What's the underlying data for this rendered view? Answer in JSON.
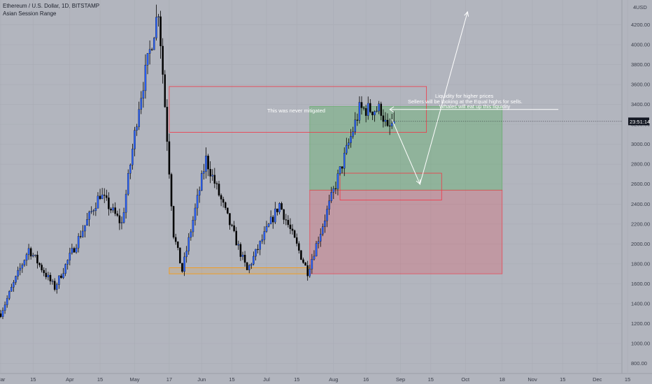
{
  "header": {
    "symbol": "Ethereum / U.S. Dollar, 1D, BITSTAMP",
    "indicator": "Asian Session Range"
  },
  "price_badge": "23:51:14",
  "currency_label": "USD",
  "colors": {
    "background": "#b2b5be",
    "bull_candle": "#2962ff",
    "bear_candle": "#000000",
    "supply_box": "#f23645",
    "demand_box": "#ff9800",
    "target_zone": "#4caf50",
    "stop_zone": "#f23645",
    "annotation": "#ffffff"
  },
  "annotations": {
    "never_mitigated": "This was never mitigated",
    "liquidity_higher": "Liquidity for higher prices",
    "sellers_equal_highs": "Sellers will be looking at the Equal highs for sells.",
    "whales_liquidity": "Whales will eat up this liquidity"
  },
  "chart_data": {
    "type": "candlestick",
    "title": "Ethereum / U.S. Dollar, 1D, BITSTAMP",
    "x_ticks": [
      "Mar",
      "15",
      "Apr",
      "15",
      "May",
      "17",
      "Jun",
      "15",
      "Jul",
      "15",
      "Aug",
      "16",
      "Sep",
      "15",
      "Oct",
      "18",
      "Nov",
      "15",
      "Dec",
      "15"
    ],
    "y_ticks": [
      800,
      1000,
      1200,
      1400,
      1600,
      1800,
      2000,
      2200,
      2400,
      2600,
      2800,
      3000,
      3200,
      3400,
      3600,
      3800,
      4000,
      4200
    ],
    "ylim": [
      700,
      4400
    ],
    "y_axis_top_label": "4",
    "current_price": 3230,
    "key_points": [
      {
        "date": "2021-02-28",
        "price": 1300
      },
      {
        "date": "2021-03-13",
        "price": 1950
      },
      {
        "date": "2021-03-25",
        "price": 1560
      },
      {
        "date": "2021-04-15",
        "price": 2500
      },
      {
        "date": "2021-04-25",
        "price": 2200
      },
      {
        "date": "2021-05-03",
        "price": 3400
      },
      {
        "date": "2021-05-12",
        "price": 4360
      },
      {
        "date": "2021-05-19",
        "price": 2100
      },
      {
        "date": "2021-05-23",
        "price": 1730
      },
      {
        "date": "2021-06-03",
        "price": 2850
      },
      {
        "date": "2021-06-22",
        "price": 1730
      },
      {
        "date": "2021-07-07",
        "price": 2400
      },
      {
        "date": "2021-07-20",
        "price": 1720
      },
      {
        "date": "2021-08-05",
        "price": 2800
      },
      {
        "date": "2021-08-13",
        "price": 3350
      },
      {
        "date": "2021-08-23",
        "price": 3350
      },
      {
        "date": "2021-08-26",
        "price": 3130
      },
      {
        "date": "2021-08-29",
        "price": 3230
      }
    ],
    "zones": [
      {
        "kind": "supply",
        "from": "2021-05-17",
        "to": "2021-09-13",
        "low": 3120,
        "high": 3580
      },
      {
        "kind": "demand",
        "from": "2021-05-17",
        "to": "2021-07-21",
        "low": 1700,
        "high": 1760
      },
      {
        "kind": "order-block",
        "from": "2021-08-04",
        "to": "2021-09-20",
        "low": 2440,
        "high": 2710
      },
      {
        "kind": "target",
        "from": "2021-07-21",
        "to": "2021-10-18",
        "low": 2540,
        "high": 3380
      },
      {
        "kind": "stop",
        "from": "2021-07-21",
        "to": "2021-10-18",
        "low": 1700,
        "high": 2540
      }
    ],
    "equal_highs_line": {
      "from": "2021-08-27",
      "to": "2021-11-13",
      "price": 3350
    },
    "projection_path": [
      {
        "date": "2021-08-28",
        "price": 3250
      },
      {
        "date": "2021-09-10",
        "price": 2600
      },
      {
        "date": "2021-10-02",
        "price": 4330
      }
    ]
  }
}
